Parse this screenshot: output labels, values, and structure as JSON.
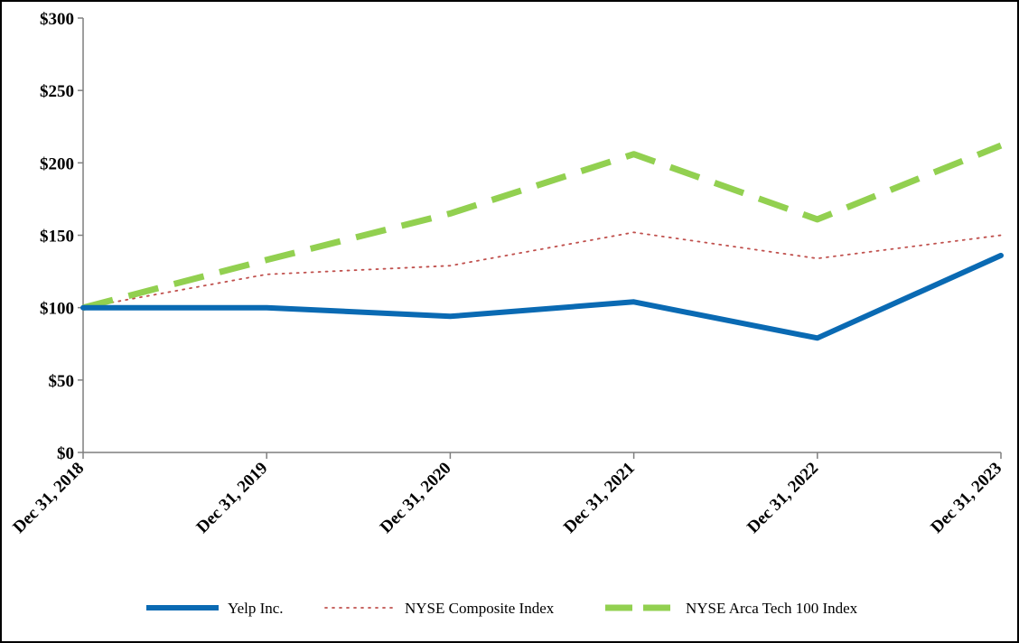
{
  "chart_data": {
    "type": "line",
    "title": "",
    "xlabel": "",
    "ylabel": "",
    "categories": [
      "Dec 31, 2018",
      "Dec 31, 2019",
      "Dec 31, 2020",
      "Dec 31, 2021",
      "Dec 31, 2022",
      "Dec 31, 2023"
    ],
    "ylim": [
      0,
      300
    ],
    "yticks": [
      0,
      50,
      100,
      150,
      200,
      250,
      300
    ],
    "ytick_labels": [
      "$0",
      "$50",
      "$100",
      "$150",
      "$200",
      "$250",
      "$300"
    ],
    "grid": false,
    "legend_position": "bottom",
    "series": [
      {
        "name": "Yelp Inc.",
        "values": [
          100,
          100,
          94,
          104,
          79,
          136
        ],
        "color": "#0a6ab3",
        "style": "solid"
      },
      {
        "name": "NYSE Composite Index",
        "values": [
          100,
          123,
          129,
          152,
          134,
          150
        ],
        "color": "#c0504d",
        "style": "dotted"
      },
      {
        "name": "NYSE Arca Tech 100 Index",
        "values": [
          100,
          133,
          165,
          206,
          161,
          212
        ],
        "color": "#92d050",
        "style": "dashed"
      }
    ]
  }
}
